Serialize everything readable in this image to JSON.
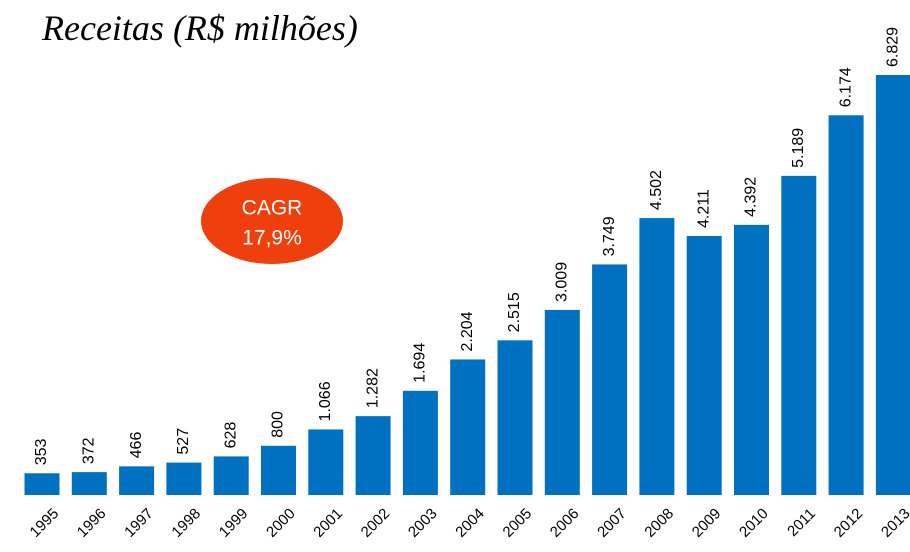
{
  "chart_data": {
    "type": "bar",
    "title": "Receitas (R$ milhões)",
    "categories": [
      "1995",
      "1996",
      "1997",
      "1998",
      "1999",
      "2000",
      "2001",
      "2002",
      "2003",
      "2004",
      "2005",
      "2006",
      "2007",
      "2008",
      "2009",
      "2010",
      "2011",
      "2012",
      "2013"
    ],
    "values": [
      353,
      372,
      466,
      527,
      628,
      800,
      1066,
      1282,
      1694,
      2204,
      2515,
      3009,
      3749,
      4502,
      4211,
      4392,
      5189,
      6174,
      6829
    ],
    "value_labels": [
      "353",
      "372",
      "466",
      "527",
      "628",
      "800",
      "1.066",
      "1.282",
      "1.694",
      "2.204",
      "2.515",
      "3.009",
      "3.749",
      "4.502",
      "4.211",
      "4.392",
      "5.189",
      "6.174",
      "6.829"
    ],
    "color": "#0070c0",
    "annotation": {
      "lines": [
        "CAGR",
        "17,9%"
      ],
      "color": "#ee3f0c"
    }
  }
}
